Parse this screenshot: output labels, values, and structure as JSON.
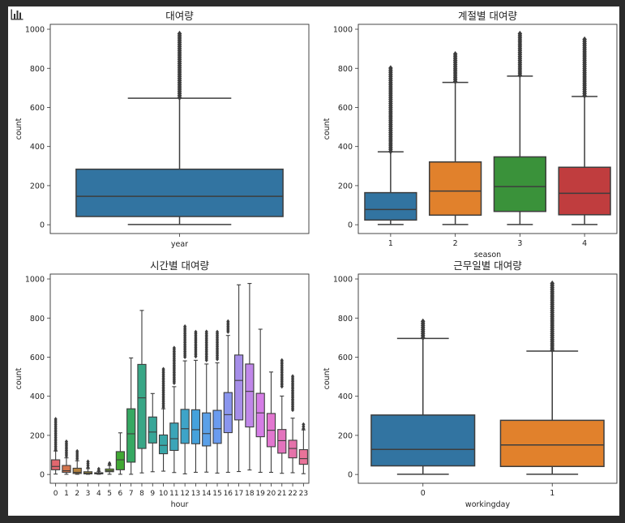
{
  "toolbar": {
    "icon": "bar-chart-icon"
  },
  "chart_data": [
    {
      "type": "box",
      "title": "대여량",
      "xlabel": "year",
      "ylabel": "count",
      "ylim": [
        -45,
        1025
      ],
      "yticks": [
        0,
        200,
        400,
        600,
        800,
        1000
      ],
      "categories": [
        ""
      ],
      "boxes": [
        {
          "category": "",
          "whisker_low": 1,
          "q1": 42,
          "median": 145,
          "q3": 284,
          "whisker_high": 647,
          "outlier_range": [
            650,
            977
          ],
          "color": "#3274a1"
        }
      ]
    },
    {
      "type": "box",
      "title": "계절별 대여량",
      "xlabel": "season",
      "ylabel": "count",
      "ylim": [
        -45,
        1025
      ],
      "yticks": [
        0,
        200,
        400,
        600,
        800,
        1000
      ],
      "categories": [
        "1",
        "2",
        "3",
        "4"
      ],
      "boxes": [
        {
          "category": "1",
          "whisker_low": 1,
          "q1": 24,
          "median": 78,
          "q3": 164,
          "whisker_high": 373,
          "outlier_range": [
            375,
            801
          ],
          "color": "#3274a1"
        },
        {
          "category": "2",
          "whisker_low": 1,
          "q1": 49,
          "median": 172,
          "q3": 321,
          "whisker_high": 728,
          "outlier_range": [
            733,
            873
          ],
          "color": "#e1812c"
        },
        {
          "category": "3",
          "whisker_low": 1,
          "q1": 68,
          "median": 195,
          "q3": 347,
          "whisker_high": 760,
          "outlier_range": [
            765,
            977
          ],
          "color": "#3a923a"
        },
        {
          "category": "4",
          "whisker_low": 1,
          "q1": 51,
          "median": 161,
          "q3": 294,
          "whisker_high": 656,
          "outlier_range": [
            660,
            948
          ],
          "color": "#c03d3e"
        }
      ]
    },
    {
      "type": "box",
      "title": "시간별 대여량",
      "xlabel": "hour",
      "ylabel": "count",
      "ylim": [
        -45,
        1025
      ],
      "yticks": [
        0,
        200,
        400,
        600,
        800,
        1000
      ],
      "categories": [
        "0",
        "1",
        "2",
        "3",
        "4",
        "5",
        "6",
        "7",
        "8",
        "9",
        "10",
        "11",
        "12",
        "13",
        "14",
        "15",
        "16",
        "17",
        "18",
        "19",
        "20",
        "21",
        "22",
        "23"
      ],
      "boxes": [
        {
          "category": "0",
          "whisker_low": 2,
          "q1": 24,
          "median": 41,
          "q3": 75,
          "whisker_high": 120,
          "outlier_range": [
            125,
            283
          ],
          "color": "#e1676e"
        },
        {
          "category": "1",
          "whisker_low": 1,
          "q1": 11,
          "median": 19,
          "q3": 46,
          "whisker_high": 85,
          "outlier_range": [
            95,
            168
          ],
          "color": "#d3754d"
        },
        {
          "category": "2",
          "whisker_low": 1,
          "q1": 5,
          "median": 11,
          "q3": 32,
          "whisker_high": 70,
          "outlier_range": [
            80,
            119
          ],
          "color": "#b5823f"
        },
        {
          "category": "3",
          "whisker_low": 1,
          "q1": 3,
          "median": 6,
          "q3": 14,
          "whisker_high": 30,
          "outlier_range": [
            36,
            66
          ],
          "color": "#9c8a3d"
        },
        {
          "category": "4",
          "whisker_low": 1,
          "q1": 3,
          "median": 6,
          "q3": 9,
          "whisker_high": 16,
          "outlier_range": [
            19,
            28
          ],
          "color": "#8d9236"
        },
        {
          "category": "5",
          "whisker_low": 1,
          "q1": 14,
          "median": 19,
          "q3": 28,
          "whisker_high": 46,
          "outlier_range": [
            52,
            57
          ],
          "color": "#76a033"
        },
        {
          "category": "6",
          "whisker_low": 1,
          "q1": 24,
          "median": 75,
          "q3": 117,
          "whisker_high": 213,
          "outlier_range": null,
          "color": "#41a834"
        },
        {
          "category": "7",
          "whisker_low": 1,
          "q1": 63,
          "median": 208,
          "q3": 336,
          "whisker_high": 596,
          "outlier_range": null,
          "color": "#36a862"
        },
        {
          "category": "8",
          "whisker_low": 8,
          "q1": 133,
          "median": 392,
          "q3": 563,
          "whisker_high": 839,
          "outlier_range": null,
          "color": "#38a686"
        },
        {
          "category": "9",
          "whisker_low": 14,
          "q1": 161,
          "median": 217,
          "q3": 294,
          "whisker_high": 414,
          "outlier_range": null,
          "color": "#38a698"
        },
        {
          "category": "10",
          "whisker_low": 17,
          "q1": 106,
          "median": 149,
          "q3": 202,
          "whisker_high": 336,
          "outlier_range": [
            345,
            539
          ],
          "color": "#39a6a8"
        },
        {
          "category": "11",
          "whisker_low": 10,
          "q1": 123,
          "median": 183,
          "q3": 263,
          "whisker_high": 449,
          "outlier_range": [
            468,
            647
          ],
          "color": "#3ba5b8"
        },
        {
          "category": "12",
          "whisker_low": 3,
          "q1": 159,
          "median": 234,
          "q3": 333,
          "whisker_high": 581,
          "outlier_range": [
            601,
            757
          ],
          "color": "#3ea4c8"
        },
        {
          "category": "13",
          "whisker_low": 11,
          "q1": 157,
          "median": 229,
          "q3": 331,
          "whisker_high": 584,
          "outlier_range": [
            604,
            729
          ],
          "color": "#45a2dc"
        },
        {
          "category": "14",
          "whisker_low": 12,
          "q1": 146,
          "median": 209,
          "q3": 315,
          "whisker_high": 565,
          "outlier_range": [
            585,
            730
          ],
          "color": "#5ba0e8"
        },
        {
          "category": "15",
          "whisker_low": 7,
          "q1": 159,
          "median": 234,
          "q3": 328,
          "whisker_high": 571,
          "outlier_range": [
            590,
            729
          ],
          "color": "#6a9bef"
        },
        {
          "category": "16",
          "whisker_low": 11,
          "q1": 214,
          "median": 306,
          "q3": 419,
          "whisker_high": 711,
          "outlier_range": [
            730,
            783
          ],
          "color": "#8a96ee"
        },
        {
          "category": "17",
          "whisker_low": 15,
          "q1": 279,
          "median": 481,
          "q3": 611,
          "whisker_high": 970,
          "outlier_range": null,
          "color": "#a68ee9"
        },
        {
          "category": "18",
          "whisker_low": 23,
          "q1": 243,
          "median": 425,
          "q3": 565,
          "whisker_high": 977,
          "outlier_range": null,
          "color": "#c087e9"
        },
        {
          "category": "19",
          "whisker_low": 11,
          "q1": 193,
          "median": 315,
          "q3": 415,
          "whisker_high": 743,
          "outlier_range": null,
          "color": "#d57de6"
        },
        {
          "category": "20",
          "whisker_low": 11,
          "q1": 142,
          "median": 226,
          "q3": 312,
          "whisker_high": 524,
          "outlier_range": null,
          "color": "#e277d0"
        },
        {
          "category": "21",
          "whisker_low": 6,
          "q1": 109,
          "median": 173,
          "q3": 230,
          "whisker_high": 401,
          "outlier_range": [
            450,
            584
          ],
          "color": "#e373bd"
        },
        {
          "category": "22",
          "whisker_low": 9,
          "q1": 85,
          "median": 133,
          "q3": 175,
          "whisker_high": 288,
          "outlier_range": [
            330,
            502
          ],
          "color": "#e572aa"
        },
        {
          "category": "23",
          "whisker_low": 4,
          "q1": 52,
          "median": 81,
          "q3": 127,
          "whisker_high": 228,
          "outlier_range": [
            234,
            256
          ],
          "color": "#e97399"
        }
      ]
    },
    {
      "type": "box",
      "title": "근무일별 대여량",
      "xlabel": "workingday",
      "ylabel": "count",
      "ylim": [
        -45,
        1025
      ],
      "yticks": [
        0,
        200,
        400,
        600,
        800,
        1000
      ],
      "categories": [
        "0",
        "1"
      ],
      "boxes": [
        {
          "category": "0",
          "whisker_low": 1,
          "q1": 44,
          "median": 128,
          "q3": 304,
          "whisker_high": 696,
          "outlier_range": [
            700,
            783
          ],
          "color": "#3274a1"
        },
        {
          "category": "1",
          "whisker_low": 1,
          "q1": 41,
          "median": 151,
          "q3": 277,
          "whisker_high": 631,
          "outlier_range": [
            636,
            977
          ],
          "color": "#e1812c"
        }
      ]
    }
  ]
}
